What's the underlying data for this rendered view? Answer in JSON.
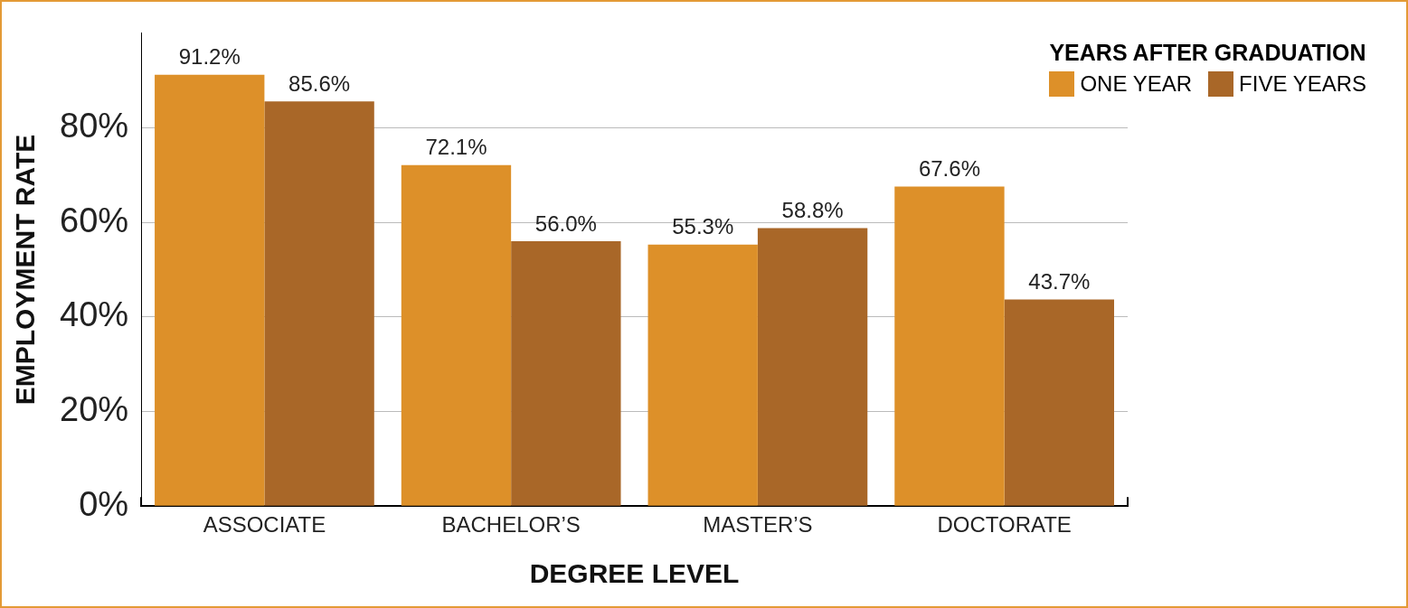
{
  "chart_data": {
    "type": "bar",
    "xlabel": "DEGREE LEVEL",
    "ylabel": "EMPLOYMENT RATE",
    "legend_title": "YEARS AFTER GRADUATION",
    "categories": [
      "ASSOCIATE",
      "BACHELOR’S",
      "MASTER’S",
      "DOCTORATE"
    ],
    "series": [
      {
        "name": "ONE YEAR",
        "color": "#dd9029",
        "values": [
          91.2,
          72.1,
          55.3,
          67.6
        ],
        "value_labels": [
          "91.2%",
          "72.1%",
          "55.3%",
          "67.6%"
        ]
      },
      {
        "name": "FIVE YEARS",
        "color": "#a96728",
        "values": [
          85.6,
          56.0,
          58.8,
          43.7
        ],
        "value_labels": [
          "85.6%",
          "56.0%",
          "58.8%",
          "43.7%"
        ]
      }
    ],
    "yticks": [
      {
        "value": 0,
        "label": "0%"
      },
      {
        "value": 20,
        "label": "20%"
      },
      {
        "value": 40,
        "label": "40%"
      },
      {
        "value": 60,
        "label": "60%"
      },
      {
        "value": 80,
        "label": "80%"
      }
    ],
    "ylim": [
      0,
      100
    ],
    "grid": "y",
    "legend": "top right"
  }
}
